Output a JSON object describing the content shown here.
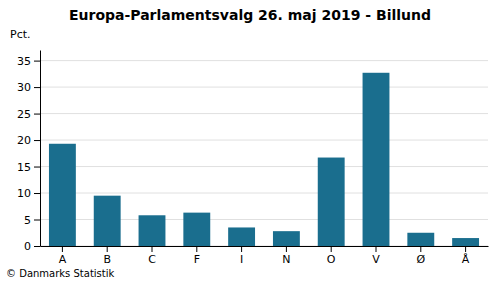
{
  "chart_data": {
    "type": "bar",
    "title": "Europa-Parlamentsvalg 26. maj 2019 - Billund",
    "categories": [
      "A",
      "B",
      "C",
      "F",
      "I",
      "N",
      "O",
      "V",
      "Ø",
      "Å"
    ],
    "values": [
      19.3,
      9.5,
      5.8,
      6.3,
      3.5,
      2.8,
      16.7,
      32.7,
      2.5,
      1.5
    ],
    "color": "#1a6e8e",
    "ylabel": "Pct.",
    "ylim": [
      0,
      37
    ],
    "yticks": [
      0,
      5,
      10,
      15,
      20,
      25,
      30,
      35
    ],
    "grid": true,
    "footer": "© Danmarks Statistik"
  }
}
